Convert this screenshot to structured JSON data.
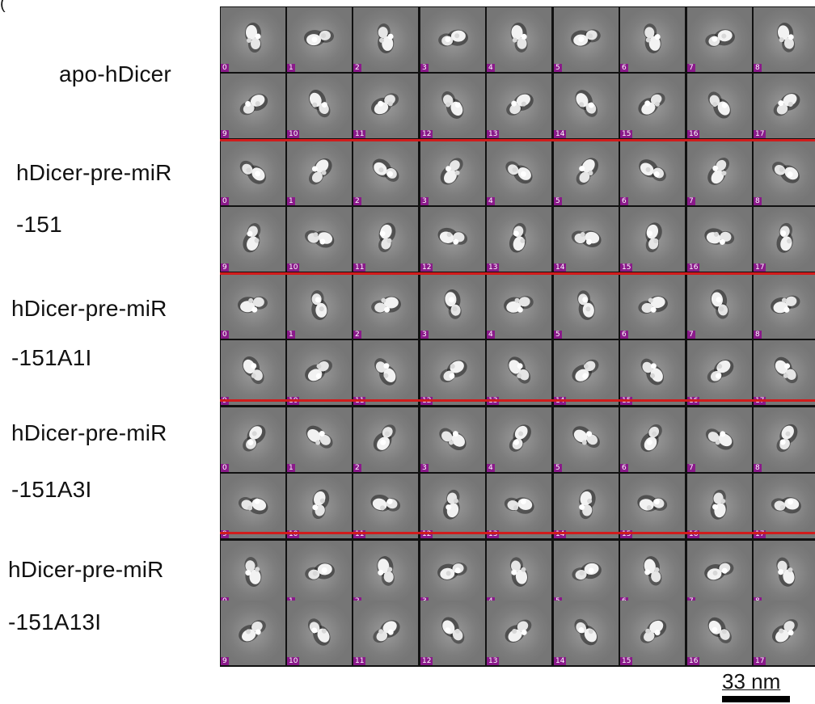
{
  "corner_mark": "(",
  "groups": [
    {
      "label_lines": [
        "apo-hDicer"
      ]
    },
    {
      "label_lines": [
        "hDicer-pre-miR",
        "-151"
      ]
    },
    {
      "label_lines": [
        "hDicer-pre-miR",
        "-151A1I"
      ]
    },
    {
      "label_lines": [
        "hDicer-pre-miR",
        "-151A3I"
      ]
    },
    {
      "label_lines": [
        "hDicer-pre-miR",
        "-151A13I"
      ]
    }
  ],
  "class_indices": [
    "0",
    "1",
    "2",
    "3",
    "4",
    "5",
    "6",
    "7",
    "8",
    "9",
    "10",
    "11",
    "12",
    "13",
    "14",
    "15",
    "16",
    "17"
  ],
  "scale_bar": {
    "label": "33 nm"
  },
  "colors": {
    "divider": "#d11c1c",
    "index_badge": "#8a1a8a",
    "tile_background": "#7b7b7b"
  }
}
